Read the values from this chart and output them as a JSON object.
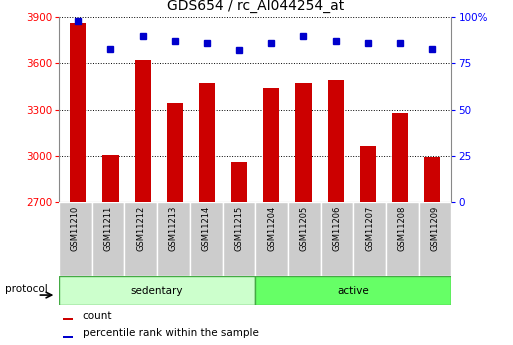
{
  "title": "GDS654 / rc_AI044254_at",
  "samples": [
    "GSM11210",
    "GSM11211",
    "GSM11212",
    "GSM11213",
    "GSM11214",
    "GSM11215",
    "GSM11204",
    "GSM11205",
    "GSM11206",
    "GSM11207",
    "GSM11208",
    "GSM11209"
  ],
  "counts": [
    3860,
    3002,
    3620,
    3340,
    3470,
    2960,
    3440,
    3470,
    3490,
    3060,
    3280,
    2990
  ],
  "percentiles": [
    98,
    83,
    90,
    87,
    86,
    82,
    86,
    90,
    87,
    86,
    86,
    83
  ],
  "sedentary_count": 6,
  "active_count": 6,
  "sedentary_color": "#ccffcc",
  "active_color": "#66ff66",
  "group_border_color": "#44aa44",
  "ylim_left": [
    2700,
    3900
  ],
  "ylim_right": [
    0,
    100
  ],
  "yticks_left": [
    2700,
    3000,
    3300,
    3600,
    3900
  ],
  "yticks_right": [
    0,
    25,
    50,
    75,
    100
  ],
  "ytick_right_labels": [
    "0",
    "25",
    "50",
    "75",
    "100%"
  ],
  "bar_color": "#cc0000",
  "dot_color": "#0000cc",
  "bar_width": 0.5,
  "bg_color": "#ffffff",
  "cell_bg": "#cccccc",
  "cell_border": "#ffffff",
  "title_fontsize": 10,
  "tick_fontsize": 7.5,
  "sample_fontsize": 6,
  "proto_fontsize": 7.5,
  "legend_fontsize": 7.5,
  "protocol_label": "protocol",
  "legend_count_label": "count",
  "legend_pct_label": "percentile rank within the sample"
}
